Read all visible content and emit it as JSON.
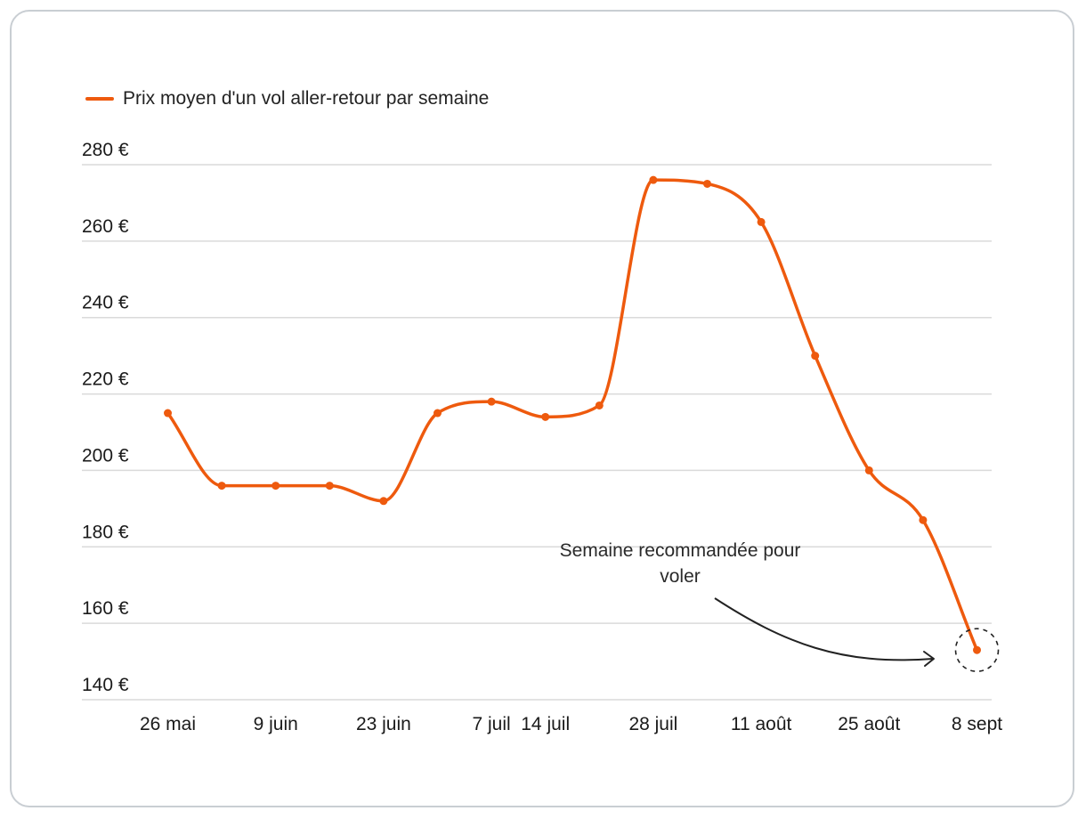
{
  "legend": {
    "label": "Prix moyen d'un vol aller-retour par semaine"
  },
  "colors": {
    "series": "#ee5a0e",
    "grid": "#dadada",
    "text": "#1a1a1a"
  },
  "chart_data": {
    "type": "line",
    "x": [
      "26 mai",
      "2 juin",
      "9 juin",
      "16 juin",
      "23 juin",
      "30 juin",
      "7 juil",
      "14 juil",
      "21 juil",
      "28 juil",
      "4 août",
      "11 août",
      "18 août",
      "25 août",
      "1 sept",
      "8 sept"
    ],
    "x_tick_labels": [
      "26 mai",
      "9 juin",
      "23 juin",
      "7 juil",
      "14 juil",
      "28 juil",
      "11 août",
      "25 août",
      "8 sept"
    ],
    "series": [
      {
        "name": "Prix moyen d'un vol aller-retour par semaine",
        "values": [
          215,
          196,
          196,
          196,
          192,
          215,
          218,
          214,
          217,
          276,
          275,
          265,
          230,
          200,
          187,
          153
        ]
      }
    ],
    "y_ticks": [
      140,
      160,
      180,
      200,
      220,
      240,
      260,
      280
    ],
    "y_tick_labels": [
      "140 €",
      "160 €",
      "180 €",
      "200 €",
      "220 €",
      "240 €",
      "260 €",
      "280 €"
    ],
    "ylim": [
      138,
      282
    ],
    "grid": true,
    "legend_position": "top-left",
    "annotation": {
      "text_lines": [
        "Semaine recommandée pour",
        "voler"
      ],
      "target": "8 sept"
    }
  }
}
